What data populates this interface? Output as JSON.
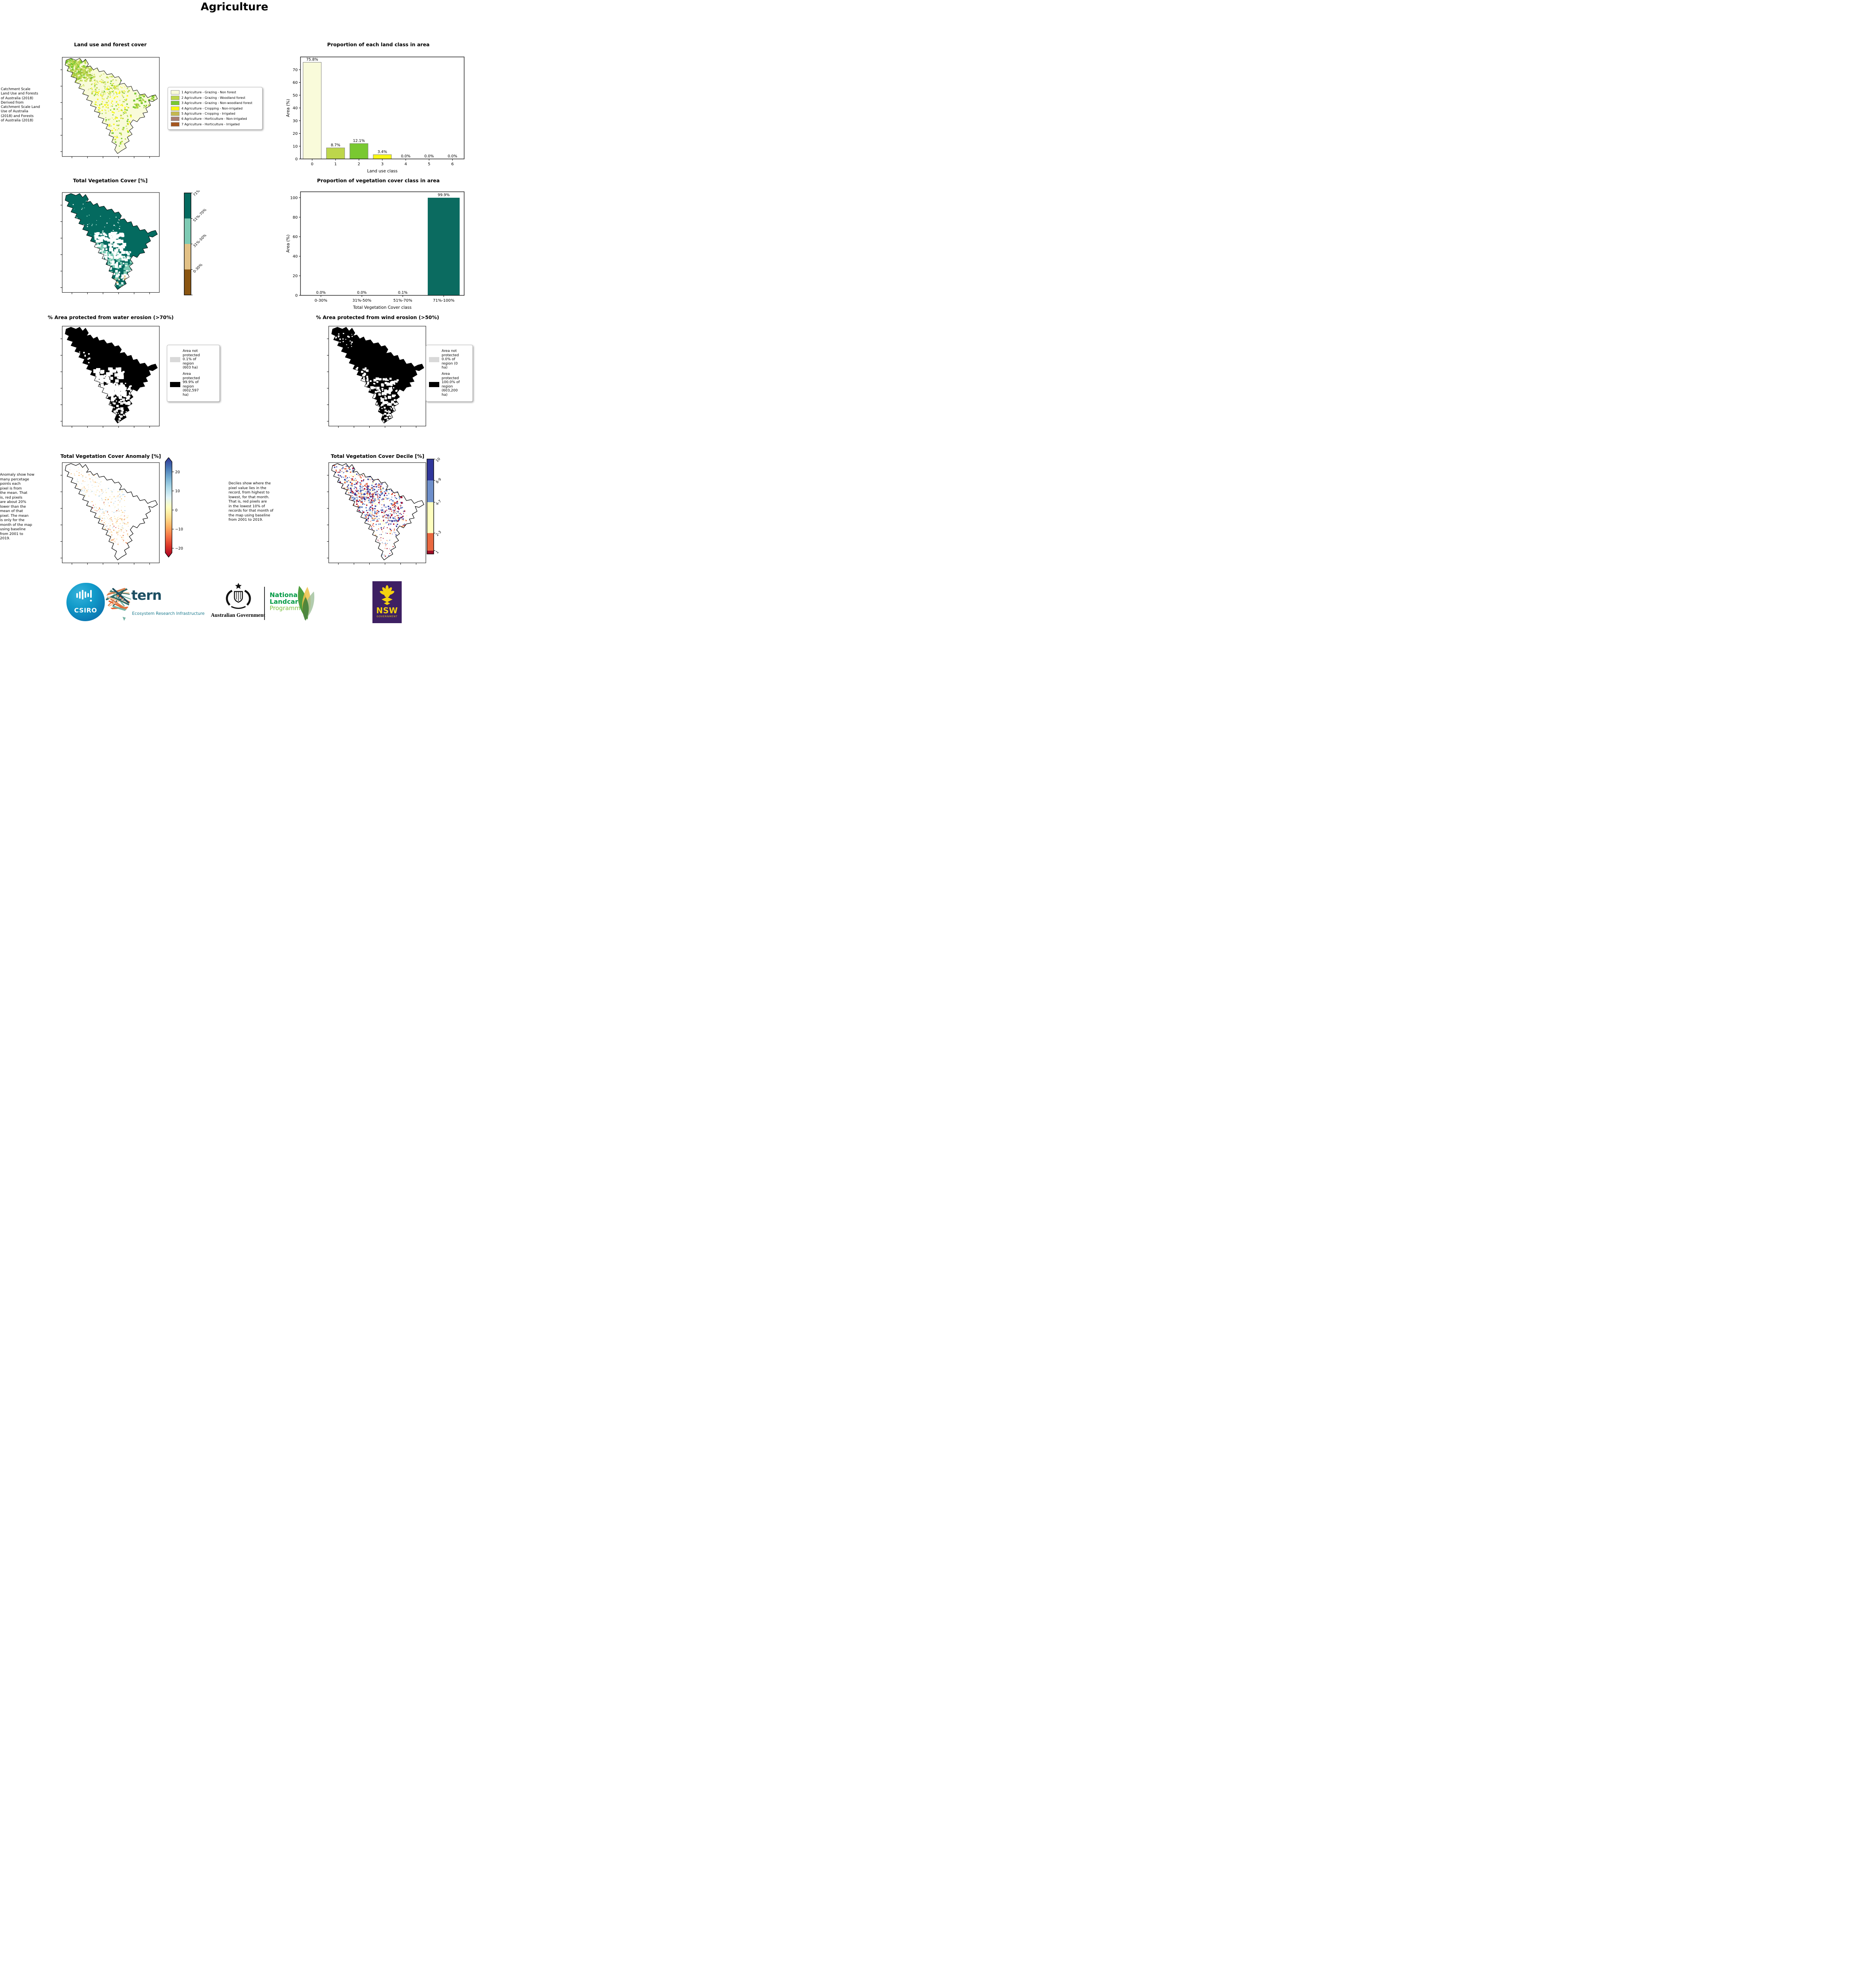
{
  "page_title": "Agriculture",
  "colors": {
    "accent_teal": "#046a5f",
    "not_protected_gray": "#d9d9d9",
    "protected_black": "#000000",
    "nsw_purple": "#3e2063",
    "landcare_green": "#009a44"
  },
  "chart_data": [
    {
      "type": "bar",
      "title": "Proportion of each land class in area",
      "xlabel": "Land use class",
      "ylabel": "Area (%)",
      "categories": [
        "0",
        "1",
        "2",
        "3",
        "4",
        "5",
        "6"
      ],
      "values": [
        75.8,
        8.7,
        12.1,
        3.4,
        0.0,
        0.0,
        0.0
      ],
      "value_labels": [
        "75.8%",
        "8.7%",
        "12.1%",
        "3.4%",
        "0.0%",
        "0.0%",
        "0.0%"
      ],
      "bar_colors": [
        "#f9fbda",
        "#bdd64b",
        "#79c831",
        "#f8f715",
        "#c4b84f",
        "#a87d70",
        "#a4561f"
      ],
      "bar_edge": "#808080",
      "yticks": [
        0,
        10,
        20,
        30,
        40,
        50,
        60,
        70
      ],
      "ylim": [
        0,
        80
      ],
      "grid": false,
      "legend_position": "none"
    },
    {
      "type": "bar",
      "title": "Proportion of vegetation cover class in area",
      "xlabel": "Total Vegetation Cover class",
      "ylabel": "Area (%)",
      "categories": [
        "0-30%",
        "31%-50%",
        "51%-70%",
        "71%-100%"
      ],
      "values": [
        0.0,
        0.0,
        0.1,
        99.9
      ],
      "value_labels": [
        "0.0%",
        "0.0%",
        "0.1%",
        "99.9%"
      ],
      "bar_colors": [
        "#0b6b60",
        "#0b6b60",
        "#0b6b60",
        "#0b6b60"
      ],
      "bar_edge": "none",
      "yticks": [
        0,
        20,
        40,
        60,
        80,
        100
      ],
      "ylim": [
        0,
        106
      ],
      "grid": false,
      "legend_position": "none"
    }
  ],
  "panels": {
    "land_use_map": {
      "title": "Land use and forest cover",
      "side_note": " Catchment Scale\nLand Use and Forests\nof Australia (2018)\nDerived from\nCatchment Scale Land\nUse of Australia\n(2018) and Forests\nof Australia (2018)",
      "legend": [
        {
          "label": "1 Agriculture - Grazing - Non forest",
          "color": "#f9fbda"
        },
        {
          "label": "2 Agriculture - Grazing - Woodland forest",
          "color": "#bdd64b"
        },
        {
          "label": "3 Agriculture - Grazing - Non-woodland forest",
          "color": "#79c831"
        },
        {
          "label": "4 Agriculture - Cropping - Non-irrigated",
          "color": "#f8f715"
        },
        {
          "label": "5 Agriculture - Cropping - Irrigated",
          "color": "#c4b84f"
        },
        {
          "label": "6 Agriculture - Horticulture - Non-irrigated",
          "color": "#a87d70"
        },
        {
          "label": "7 Agriculture - Horticulture - Irrigated",
          "color": "#a4561f"
        }
      ]
    },
    "veg_cover_map": {
      "title": "Total Vegetation Cover [%]",
      "colorbar": [
        {
          "label": "71%-100%",
          "color": "#046a5f"
        },
        {
          "label": "51%-70%",
          "color": "#7ecbb4"
        },
        {
          "label": "31%-50%",
          "color": "#e2c186"
        },
        {
          "label": "0-30%",
          "color": "#8a5511"
        }
      ]
    },
    "water_erosion_map": {
      "title": "% Area protected from water erosion (>70%)",
      "legend": [
        {
          "label": "Area not\nprotected\n0.1% of\nregion\n(603 ha)",
          "color": "#d9d9d9"
        },
        {
          "label": "Area\nprotected\n99.9% of\nregion\n(602,597\nha)",
          "color": "#000000"
        }
      ]
    },
    "wind_erosion_map": {
      "title": "% Area protected from wind erosion (>50%)",
      "legend": [
        {
          "label": "Area not\nprotected\n0.0% of\nregion (0\nha)",
          "color": "#d9d9d9"
        },
        {
          "label": "Area\nprotected\n100.0% of\nregion\n(603,200\nha)",
          "color": "#000000"
        }
      ]
    },
    "anomaly_map": {
      "title": "Total Vegetation Cover Anomaly [%]",
      "side_note": "Anomaly show how\nmany percetage\npoints each\npixel is from\nthe mean. That\nis, red pixels\nare about 20%\nlower than the\nmean of that\npixel. The mean\nis only for the\nmonth of the map\nusing baseline\nfrom 2001 to\n2019.",
      "colorbar_ticks": [
        "20",
        "10",
        "0",
        "−10",
        "−20"
      ]
    },
    "decile_map": {
      "title": "Total Vegetation Cover Decile [%]",
      "side_note": "Deciles show where the\npixel value lies in the\nrecord, from highest to\nlowest, for that month.\nThat is, red pixels are\nin the lowest 10% of\nrecords for that month of\nthe map using baseline\nfrom 2001 to 2019.",
      "colorbar": [
        {
          "label": "10",
          "color": "#30379b",
          "frac": 0.225
        },
        {
          "label": "8-9",
          "color": "#6e8fcb",
          "frac": 0.23
        },
        {
          "label": "4-7",
          "color": "#fefebe",
          "frac": 0.325
        },
        {
          "label": "2-3",
          "color": "#e9683f",
          "frac": 0.185
        },
        {
          "label": "1",
          "color": "#9e0d27",
          "frac": 0.035
        }
      ]
    }
  },
  "footer": {
    "csiro": "CSIRO",
    "tern": "tern",
    "tern_sub": "Ecosystem Research Infrastructure",
    "aus_gov": "Australian Government",
    "landcare": [
      "National",
      "Landcare",
      "Programme"
    ],
    "nsw": "NSW",
    "nsw_sub": "GOVERNMENT"
  }
}
